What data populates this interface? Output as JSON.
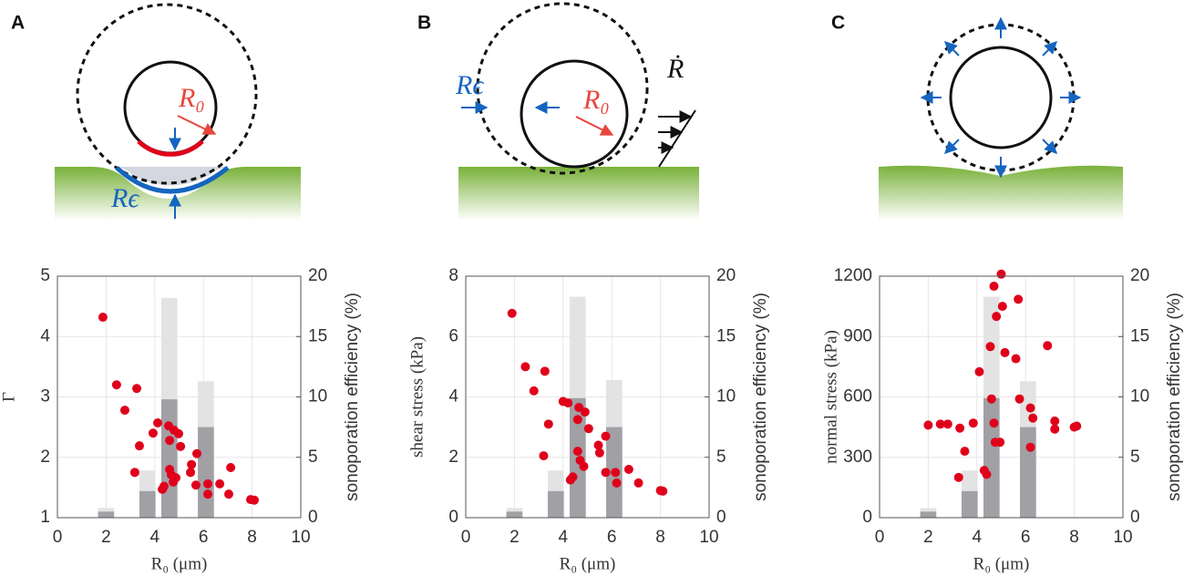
{
  "chart_data": [
    {
      "type": "combo",
      "panel_label": "A",
      "diagram_labels": [
        "R₀",
        "Rϵ"
      ],
      "xlabel": "R₀ (μm)",
      "ylabel": "Γ",
      "y2label": "sonoporation efficiency (%)",
      "xlim": [
        0,
        10
      ],
      "xticks": [
        0,
        2,
        4,
        6,
        8,
        10
      ],
      "ylim": [
        1,
        5
      ],
      "yticks": [
        1,
        2,
        3,
        4,
        5
      ],
      "y2lim": [
        0,
        20
      ],
      "y2ticks": [
        0,
        5,
        10,
        15,
        20
      ],
      "grid": true,
      "series": [
        {
          "type": "bar",
          "color": "#e3e3e3",
          "axis": "y2",
          "x": [
            2,
            3.7,
            4.6,
            6.1
          ],
          "values": [
            0.8,
            3.9,
            18.2,
            11.3
          ]
        },
        {
          "type": "bar",
          "color": "#a0a0a5",
          "axis": "y2",
          "x": [
            2,
            3.7,
            4.6,
            6.1
          ],
          "values": [
            0.5,
            2.2,
            9.8,
            7.5
          ]
        },
        {
          "type": "scatter",
          "color": "#e0001b",
          "x": [
            1.87,
            2.43,
            2.77,
            3.26,
            3.37,
            3.18,
            3.93,
            4.12,
            4.31,
            4.38,
            4.57,
            4.61,
            4.79,
            4.98,
            5.06,
            4.61,
            4.68,
            4.87,
            4.76,
            5.51,
            5.47,
            5.73,
            5.69,
            6.18,
            6.18,
            6.67,
            7.12,
            7.04,
            7.94,
            8.09
          ],
          "values": [
            4.32,
            3.2,
            2.78,
            3.14,
            2.19,
            1.75,
            2.4,
            2.57,
            1.47,
            1.52,
            2.52,
            2.28,
            2.45,
            2.39,
            2.18,
            1.8,
            1.71,
            1.66,
            1.59,
            1.88,
            1.75,
            2.06,
            1.54,
            1.56,
            1.39,
            1.56,
            1.83,
            1.39,
            1.3,
            1.29
          ]
        }
      ]
    },
    {
      "type": "combo",
      "panel_label": "B",
      "diagram_labels": [
        "Rϵ",
        "R₀",
        "Ṙ"
      ],
      "xlabel": "R₀ (μm)",
      "ylabel": "shear stress (kPa)",
      "y2label": "sonoporation efficiency (%)",
      "xlim": [
        0,
        10
      ],
      "xticks": [
        0,
        2,
        4,
        6,
        8,
        10
      ],
      "ylim": [
        0,
        8
      ],
      "yticks": [
        0,
        2,
        4,
        6,
        8
      ],
      "y2lim": [
        0,
        20
      ],
      "y2ticks": [
        0,
        5,
        10,
        15,
        20
      ],
      "grid": true,
      "series": [
        {
          "type": "bar",
          "color": "#e3e3e3",
          "axis": "y2",
          "x": [
            2,
            3.7,
            4.6,
            6.1
          ],
          "values": [
            0.8,
            3.9,
            18.3,
            11.4
          ]
        },
        {
          "type": "bar",
          "color": "#a0a0a5",
          "axis": "y2",
          "x": [
            2,
            3.7,
            4.6,
            6.1
          ],
          "values": [
            0.5,
            2.2,
            9.9,
            7.5
          ]
        },
        {
          "type": "scatter",
          "color": "#e0001b",
          "x": [
            1.9,
            2.45,
            2.8,
            3.25,
            3.4,
            3.2,
            4.0,
            4.2,
            4.4,
            4.3,
            4.65,
            4.6,
            4.9,
            5.05,
            4.6,
            4.7,
            4.85,
            5.45,
            5.5,
            5.75,
            5.75,
            6.15,
            6.2,
            6.7,
            7.1,
            8.0,
            8.1
          ],
          "values": [
            6.77,
            5.0,
            4.2,
            4.85,
            3.1,
            2.05,
            3.85,
            3.8,
            1.35,
            1.25,
            3.65,
            3.25,
            3.5,
            2.95,
            2.2,
            1.9,
            1.7,
            2.4,
            2.15,
            2.7,
            1.5,
            1.5,
            1.15,
            1.6,
            1.15,
            0.9,
            0.88
          ]
        }
      ]
    },
    {
      "type": "combo",
      "panel_label": "C",
      "xlabel": "R₀ (μm)",
      "ylabel": "normal stress (kPa)",
      "y2label": "sonoporation efficiency (%)",
      "xlim": [
        0,
        10
      ],
      "xticks": [
        0,
        2,
        4,
        6,
        8,
        10
      ],
      "ylim": [
        0,
        1200
      ],
      "yticks": [
        0,
        300,
        600,
        900,
        1200
      ],
      "y2lim": [
        0,
        20
      ],
      "y2ticks": [
        0,
        5,
        10,
        15,
        20
      ],
      "grid": true,
      "series": [
        {
          "type": "bar",
          "color": "#e3e3e3",
          "axis": "y2",
          "x": [
            2,
            3.7,
            4.6,
            6.1
          ],
          "values": [
            0.8,
            3.9,
            18.3,
            11.3
          ]
        },
        {
          "type": "bar",
          "color": "#a0a0a5",
          "axis": "y2",
          "x": [
            2,
            3.7,
            4.6,
            6.1
          ],
          "values": [
            0.5,
            2.2,
            9.9,
            7.5
          ]
        },
        {
          "type": "scatter",
          "color": "#e0001b",
          "x": [
            2.0,
            2.5,
            2.8,
            3.3,
            3.5,
            3.25,
            3.85,
            4.1,
            4.3,
            4.4,
            4.55,
            4.6,
            4.7,
            4.8,
            5.05,
            4.7,
            5.0,
            4.75,
            4.95,
            5.15,
            5.7,
            5.75,
            5.6,
            6.2,
            6.2,
            6.3,
            6.9,
            7.2,
            7.2,
            8.0,
            8.1
          ],
          "values": [
            460,
            465,
            465,
            445,
            330,
            200,
            470,
            725,
            235,
            215,
            850,
            590,
            470,
            1000,
            1050,
            1150,
            1210,
            375,
            375,
            820,
            1085,
            590,
            790,
            545,
            350,
            495,
            855,
            480,
            440,
            450,
            455
          ]
        }
      ]
    }
  ]
}
